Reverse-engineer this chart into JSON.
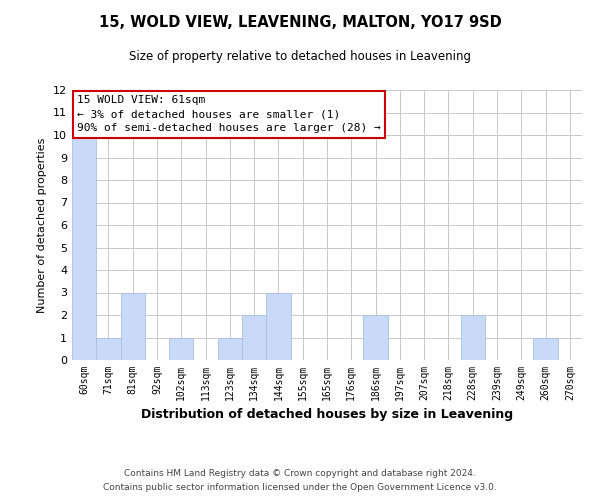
{
  "title": "15, WOLD VIEW, LEAVENING, MALTON, YO17 9SD",
  "subtitle": "Size of property relative to detached houses in Leavening",
  "xlabel": "Distribution of detached houses by size in Leavening",
  "ylabel": "Number of detached properties",
  "bar_color": "#c9daf8",
  "bar_edge_color": "#aabfe0",
  "categories": [
    "60sqm",
    "71sqm",
    "81sqm",
    "92sqm",
    "102sqm",
    "113sqm",
    "123sqm",
    "134sqm",
    "144sqm",
    "155sqm",
    "165sqm",
    "176sqm",
    "186sqm",
    "197sqm",
    "207sqm",
    "218sqm",
    "228sqm",
    "239sqm",
    "249sqm",
    "260sqm",
    "270sqm"
  ],
  "values": [
    10,
    1,
    3,
    0,
    1,
    0,
    1,
    2,
    3,
    0,
    0,
    0,
    2,
    0,
    0,
    0,
    2,
    0,
    0,
    1,
    0
  ],
  "ylim": [
    0,
    12
  ],
  "yticks": [
    0,
    1,
    2,
    3,
    4,
    5,
    6,
    7,
    8,
    9,
    10,
    11,
    12
  ],
  "annotation_line1": "15 WOLD VIEW: 61sqm",
  "annotation_line2": "← 3% of detached houses are smaller (1)",
  "annotation_line3": "90% of semi-detached houses are larger (28) →",
  "annotation_box_color": "#ffffff",
  "annotation_box_edge_color": "#cc0000",
  "footer_line1": "Contains HM Land Registry data © Crown copyright and database right 2024.",
  "footer_line2": "Contains public sector information licensed under the Open Government Licence v3.0.",
  "background_color": "#ffffff",
  "grid_color": "#c8c8c8"
}
